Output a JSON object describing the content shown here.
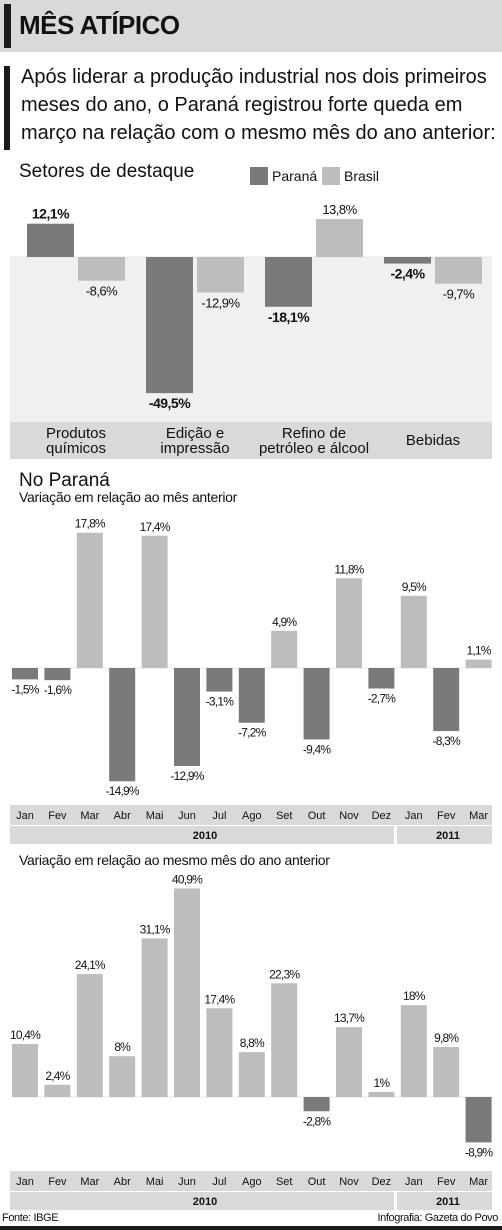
{
  "header": {
    "title": "MÊS ATÍPICO"
  },
  "intro": {
    "lines": [
      "Após liderar a produção industrial nos dois primeiros",
      "meses do ano, o Paraná registrou forte queda em",
      "março na relação com o mesmo mês do ano anterior:"
    ]
  },
  "colors": {
    "parana": "#7a7a7a",
    "brasil": "#bdbdbd",
    "band": "#d9d9d9"
  },
  "chart_data": [
    {
      "id": "setores",
      "type": "bar",
      "title": "Setores de destaque",
      "legend": [
        "Paraná",
        "Brasil"
      ],
      "legend_placement": "top-right",
      "categories": [
        [
          "Produtos",
          "químicos"
        ],
        [
          "Edição e",
          "impressão"
        ],
        [
          "Refino de",
          "petróleo e álcool"
        ],
        [
          "Bebidas"
        ]
      ],
      "series": [
        {
          "name": "Paraná",
          "values": [
            12.1,
            -49.5,
            -18.1,
            -2.4
          ],
          "labels": [
            "12,1%",
            "-49,5%",
            "-18,1%",
            "-2,4%"
          ]
        },
        {
          "name": "Brasil",
          "values": [
            -8.6,
            -12.9,
            13.8,
            -9.7
          ],
          "labels": [
            "-8,6%",
            "-12,9%",
            "13,8%",
            "-9,7%"
          ]
        }
      ],
      "grid": false
    },
    {
      "id": "mensal",
      "type": "bar",
      "title": "No Paraná",
      "subtitle": "Variação em relação ao mês anterior",
      "categories": [
        "Jan",
        "Fev",
        "Mar",
        "Abr",
        "Mai",
        "Jun",
        "Jul",
        "Ago",
        "Set",
        "Out",
        "Nov",
        "Dez",
        "Jan",
        "Fev",
        "Mar"
      ],
      "values": [
        -1.5,
        -1.6,
        17.8,
        -14.9,
        17.4,
        -12.9,
        -3.1,
        -7.2,
        4.9,
        -9.4,
        11.8,
        -2.7,
        9.5,
        -8.3,
        1.1
      ],
      "labels": [
        "-1,5%",
        "-1,6%",
        "17,8%",
        "-14,9%",
        "17,4%",
        "-12,9%",
        "-3,1%",
        "-7,2%",
        "4,9%",
        "-9,4%",
        "11,8%",
        "-2,7%",
        "9,5%",
        "-8,3%",
        "1,1%"
      ],
      "years": [
        {
          "label": "2010",
          "span": 12
        },
        {
          "label": "2011",
          "span": 3
        }
      ],
      "grid": false
    },
    {
      "id": "anual",
      "type": "bar",
      "subtitle": "Variação em relação ao mesmo mês do ano anterior",
      "categories": [
        "Jan",
        "Fev",
        "Mar",
        "Abr",
        "Mai",
        "Jun",
        "Jul",
        "Ago",
        "Set",
        "Out",
        "Nov",
        "Dez",
        "Jan",
        "Fev",
        "Mar"
      ],
      "values": [
        10.4,
        2.4,
        24.1,
        8,
        31.1,
        40.9,
        17.4,
        8.8,
        22.3,
        -2.8,
        13.7,
        1,
        18,
        9.8,
        -8.9
      ],
      "labels": [
        "10,4%",
        "2,4%",
        "24,1%",
        "8%",
        "31,1%",
        "40,9%",
        "17,4%",
        "8,8%",
        "22,3%",
        "-2,8%",
        "13,7%",
        "1%",
        "18%",
        "9,8%",
        "-8,9%"
      ],
      "years": [
        {
          "label": "2010",
          "span": 12
        },
        {
          "label": "2011",
          "span": 3
        }
      ],
      "grid": false
    }
  ],
  "footer": {
    "source": "Fonte: IBGE",
    "credit": "Infografia: Gazeta do Povo"
  }
}
